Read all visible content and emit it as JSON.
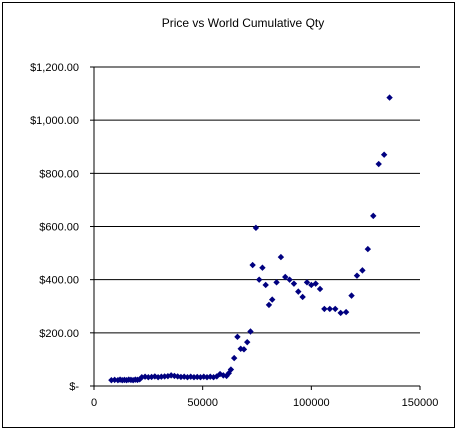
{
  "chart_data": {
    "type": "scatter",
    "title": "Price vs World Cumulative Qty",
    "xlabel": "",
    "ylabel": "",
    "xlim": [
      0,
      150000
    ],
    "ylim": [
      0,
      1200
    ],
    "x_ticks": [
      0,
      50000,
      100000,
      150000
    ],
    "x_tick_labels": [
      "0",
      "50000",
      "100000",
      "150000"
    ],
    "y_ticks": [
      0,
      200,
      400,
      600,
      800,
      1000,
      1200
    ],
    "y_tick_labels": [
      "$-",
      "$200.00",
      "$400.00",
      "$600.00",
      "$800.00",
      "$1,000.00",
      "$1,200.00"
    ],
    "grid": "horizontal",
    "marker_color": "#000080",
    "marker": "diamond",
    "points": [
      {
        "x": 8000,
        "y": 22
      },
      {
        "x": 9500,
        "y": 23
      },
      {
        "x": 11000,
        "y": 22
      },
      {
        "x": 12000,
        "y": 24
      },
      {
        "x": 13000,
        "y": 22
      },
      {
        "x": 14000,
        "y": 23
      },
      {
        "x": 15000,
        "y": 22
      },
      {
        "x": 16000,
        "y": 24
      },
      {
        "x": 17000,
        "y": 23
      },
      {
        "x": 18000,
        "y": 22
      },
      {
        "x": 19000,
        "y": 24
      },
      {
        "x": 20000,
        "y": 23
      },
      {
        "x": 21000,
        "y": 25
      },
      {
        "x": 22000,
        "y": 33
      },
      {
        "x": 23500,
        "y": 35
      },
      {
        "x": 25000,
        "y": 33
      },
      {
        "x": 26500,
        "y": 34
      },
      {
        "x": 28000,
        "y": 36
      },
      {
        "x": 29500,
        "y": 33
      },
      {
        "x": 31000,
        "y": 35
      },
      {
        "x": 32500,
        "y": 36
      },
      {
        "x": 34000,
        "y": 37
      },
      {
        "x": 35500,
        "y": 40
      },
      {
        "x": 37000,
        "y": 38
      },
      {
        "x": 38500,
        "y": 36
      },
      {
        "x": 40000,
        "y": 34
      },
      {
        "x": 41500,
        "y": 35
      },
      {
        "x": 43000,
        "y": 33
      },
      {
        "x": 44500,
        "y": 35
      },
      {
        "x": 46000,
        "y": 33
      },
      {
        "x": 47500,
        "y": 34
      },
      {
        "x": 49000,
        "y": 33
      },
      {
        "x": 50500,
        "y": 35
      },
      {
        "x": 52000,
        "y": 33
      },
      {
        "x": 53500,
        "y": 35
      },
      {
        "x": 55000,
        "y": 33
      },
      {
        "x": 56500,
        "y": 36
      },
      {
        "x": 58000,
        "y": 45
      },
      {
        "x": 59500,
        "y": 40
      },
      {
        "x": 61000,
        "y": 38
      },
      {
        "x": 62000,
        "y": 48
      },
      {
        "x": 63000,
        "y": 62
      },
      {
        "x": 64500,
        "y": 105
      },
      {
        "x": 66000,
        "y": 185
      },
      {
        "x": 67500,
        "y": 140
      },
      {
        "x": 69000,
        "y": 138
      },
      {
        "x": 70500,
        "y": 165
      },
      {
        "x": 72000,
        "y": 205
      },
      {
        "x": 73000,
        "y": 455
      },
      {
        "x": 74500,
        "y": 595
      },
      {
        "x": 76000,
        "y": 400
      },
      {
        "x": 77500,
        "y": 445
      },
      {
        "x": 79000,
        "y": 380
      },
      {
        "x": 80500,
        "y": 305
      },
      {
        "x": 82000,
        "y": 325
      },
      {
        "x": 84000,
        "y": 390
      },
      {
        "x": 86000,
        "y": 485
      },
      {
        "x": 88000,
        "y": 410
      },
      {
        "x": 90000,
        "y": 400
      },
      {
        "x": 92000,
        "y": 385
      },
      {
        "x": 94000,
        "y": 355
      },
      {
        "x": 96000,
        "y": 335
      },
      {
        "x": 98000,
        "y": 390
      },
      {
        "x": 100000,
        "y": 380
      },
      {
        "x": 102000,
        "y": 385
      },
      {
        "x": 104000,
        "y": 365
      },
      {
        "x": 106000,
        "y": 290
      },
      {
        "x": 108500,
        "y": 290
      },
      {
        "x": 111000,
        "y": 290
      },
      {
        "x": 113500,
        "y": 275
      },
      {
        "x": 116000,
        "y": 278
      },
      {
        "x": 118500,
        "y": 340
      },
      {
        "x": 121000,
        "y": 415
      },
      {
        "x": 123500,
        "y": 435
      },
      {
        "x": 126000,
        "y": 515
      },
      {
        "x": 128500,
        "y": 640
      },
      {
        "x": 131000,
        "y": 835
      },
      {
        "x": 133500,
        "y": 870
      },
      {
        "x": 136000,
        "y": 1085
      }
    ]
  }
}
